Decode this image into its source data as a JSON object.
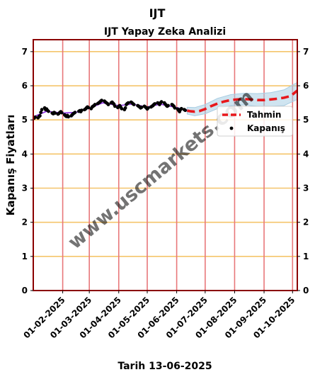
{
  "chart_data": {
    "type": "line",
    "title": "IJT",
    "subtitle": "IJT Yapay Zeka Analizi",
    "xlabel": "Tarih 13-06-2025",
    "ylabel": "Kapanış Fiyatları",
    "watermark": "www.uscmarkets.com",
    "ylim": [
      0,
      7.35
    ],
    "y_ticks": [
      "0",
      "1",
      "2",
      "3",
      "4",
      "5",
      "6",
      "7"
    ],
    "x_range": [
      "2025-01-01",
      "2025-10-06"
    ],
    "x_ticks": [
      {
        "date": "2025-02-01",
        "label": "01-02-2025"
      },
      {
        "date": "2025-03-01",
        "label": "01-03-2025"
      },
      {
        "date": "2025-04-01",
        "label": "01-04-2025"
      },
      {
        "date": "2025-05-01",
        "label": "01-05-2025"
      },
      {
        "date": "2025-06-01",
        "label": "01-06-2025"
      },
      {
        "date": "2025-07-01",
        "label": "01-07-2025"
      },
      {
        "date": "2025-08-01",
        "label": "01-08-2025"
      },
      {
        "date": "2025-09-01",
        "label": "01-09-2025"
      },
      {
        "date": "2025-10-01",
        "label": "01-10-2025"
      }
    ],
    "grid": {
      "horizontal": true,
      "vertical": true
    },
    "legend_position": "right",
    "series": [
      {
        "name": "Kapanış",
        "kind": "scatter",
        "color": "#000000",
        "points": [
          [
            "2025-01-02",
            5.05
          ],
          [
            "2025-01-03",
            5.08
          ],
          [
            "2025-01-06",
            5.06
          ],
          [
            "2025-01-07",
            5.1
          ],
          [
            "2025-01-08",
            5.12
          ],
          [
            "2025-01-09",
            5.22
          ],
          [
            "2025-01-10",
            5.3
          ],
          [
            "2025-01-13",
            5.35
          ],
          [
            "2025-01-14",
            5.3
          ],
          [
            "2025-01-15",
            5.32
          ],
          [
            "2025-01-16",
            5.28
          ],
          [
            "2025-01-17",
            5.25
          ],
          [
            "2025-01-21",
            5.2
          ],
          [
            "2025-01-22",
            5.18
          ],
          [
            "2025-01-23",
            5.22
          ],
          [
            "2025-01-24",
            5.2
          ],
          [
            "2025-01-27",
            5.17
          ],
          [
            "2025-01-28",
            5.19
          ],
          [
            "2025-01-29",
            5.22
          ],
          [
            "2025-01-30",
            5.24
          ],
          [
            "2025-01-31",
            5.21
          ],
          [
            "2025-02-03",
            5.15
          ],
          [
            "2025-02-04",
            5.12
          ],
          [
            "2025-02-05",
            5.1
          ],
          [
            "2025-02-06",
            5.13
          ],
          [
            "2025-02-07",
            5.09
          ],
          [
            "2025-02-10",
            5.12
          ],
          [
            "2025-02-11",
            5.15
          ],
          [
            "2025-02-12",
            5.18
          ],
          [
            "2025-02-13",
            5.2
          ],
          [
            "2025-02-14",
            5.22
          ],
          [
            "2025-02-18",
            5.25
          ],
          [
            "2025-02-19",
            5.27
          ],
          [
            "2025-02-20",
            5.24
          ],
          [
            "2025-02-21",
            5.28
          ],
          [
            "2025-02-24",
            5.3
          ],
          [
            "2025-02-25",
            5.32
          ],
          [
            "2025-02-26",
            5.35
          ],
          [
            "2025-02-27",
            5.38
          ],
          [
            "2025-02-28",
            5.36
          ],
          [
            "2025-03-03",
            5.33
          ],
          [
            "2025-03-04",
            5.38
          ],
          [
            "2025-03-05",
            5.4
          ],
          [
            "2025-03-06",
            5.42
          ],
          [
            "2025-03-07",
            5.45
          ],
          [
            "2025-03-10",
            5.48
          ],
          [
            "2025-03-11",
            5.5
          ],
          [
            "2025-03-12",
            5.52
          ],
          [
            "2025-03-13",
            5.55
          ],
          [
            "2025-03-14",
            5.57
          ],
          [
            "2025-03-17",
            5.55
          ],
          [
            "2025-03-18",
            5.52
          ],
          [
            "2025-03-19",
            5.5
          ],
          [
            "2025-03-20",
            5.48
          ],
          [
            "2025-03-21",
            5.45
          ],
          [
            "2025-03-24",
            5.5
          ],
          [
            "2025-03-25",
            5.52
          ],
          [
            "2025-03-26",
            5.49
          ],
          [
            "2025-03-27",
            5.46
          ],
          [
            "2025-03-28",
            5.4
          ],
          [
            "2025-03-31",
            5.36
          ],
          [
            "2025-04-01",
            5.4
          ],
          [
            "2025-04-02",
            5.42
          ],
          [
            "2025-04-03",
            5.38
          ],
          [
            "2025-04-04",
            5.33
          ],
          [
            "2025-04-07",
            5.3
          ],
          [
            "2025-04-08",
            5.35
          ],
          [
            "2025-04-09",
            5.45
          ],
          [
            "2025-04-10",
            5.48
          ],
          [
            "2025-04-11",
            5.5
          ],
          [
            "2025-04-14",
            5.52
          ],
          [
            "2025-04-15",
            5.5
          ],
          [
            "2025-04-16",
            5.47
          ],
          [
            "2025-04-17",
            5.45
          ],
          [
            "2025-04-21",
            5.42
          ],
          [
            "2025-04-22",
            5.4
          ],
          [
            "2025-04-23",
            5.38
          ],
          [
            "2025-04-24",
            5.35
          ],
          [
            "2025-04-25",
            5.37
          ],
          [
            "2025-04-28",
            5.4
          ],
          [
            "2025-04-29",
            5.38
          ],
          [
            "2025-04-30",
            5.35
          ],
          [
            "2025-05-01",
            5.32
          ],
          [
            "2025-05-02",
            5.35
          ],
          [
            "2025-05-05",
            5.38
          ],
          [
            "2025-05-06",
            5.4
          ],
          [
            "2025-05-07",
            5.42
          ],
          [
            "2025-05-08",
            5.45
          ],
          [
            "2025-05-09",
            5.47
          ],
          [
            "2025-05-12",
            5.5
          ],
          [
            "2025-05-13",
            5.48
          ],
          [
            "2025-05-14",
            5.45
          ],
          [
            "2025-05-15",
            5.5
          ],
          [
            "2025-05-16",
            5.53
          ],
          [
            "2025-05-19",
            5.5
          ],
          [
            "2025-05-20",
            5.46
          ],
          [
            "2025-05-21",
            5.43
          ],
          [
            "2025-05-22",
            5.4
          ],
          [
            "2025-05-23",
            5.42
          ],
          [
            "2025-05-27",
            5.45
          ],
          [
            "2025-05-28",
            5.43
          ],
          [
            "2025-05-29",
            5.4
          ],
          [
            "2025-05-30",
            5.35
          ],
          [
            "2025-06-02",
            5.32
          ],
          [
            "2025-06-03",
            5.28
          ],
          [
            "2025-06-04",
            5.24
          ],
          [
            "2025-06-05",
            5.3
          ],
          [
            "2025-06-06",
            5.33
          ],
          [
            "2025-06-09",
            5.3
          ],
          [
            "2025-06-10",
            5.28
          ]
        ]
      },
      {
        "name": "Tahmin",
        "kind": "line",
        "color": "#e8171b",
        "dashed": true,
        "points": [
          [
            "2025-06-12",
            5.27
          ],
          [
            "2025-06-16",
            5.25
          ],
          [
            "2025-06-20",
            5.24
          ],
          [
            "2025-06-25",
            5.26
          ],
          [
            "2025-07-01",
            5.32
          ],
          [
            "2025-07-07",
            5.4
          ],
          [
            "2025-07-14",
            5.48
          ],
          [
            "2025-07-21",
            5.54
          ],
          [
            "2025-07-28",
            5.58
          ],
          [
            "2025-08-04",
            5.6
          ],
          [
            "2025-08-11",
            5.61
          ],
          [
            "2025-08-18",
            5.6
          ],
          [
            "2025-08-25",
            5.58
          ],
          [
            "2025-09-01",
            5.58
          ],
          [
            "2025-09-08",
            5.6
          ],
          [
            "2025-09-15",
            5.62
          ],
          [
            "2025-09-22",
            5.65
          ],
          [
            "2025-09-29",
            5.7
          ],
          [
            "2025-10-06",
            5.86
          ]
        ]
      }
    ],
    "band": {
      "color": "#a8cde3",
      "upper": [
        [
          "2025-06-12",
          5.37
        ],
        [
          "2025-06-20",
          5.36
        ],
        [
          "2025-07-01",
          5.45
        ],
        [
          "2025-07-14",
          5.63
        ],
        [
          "2025-07-28",
          5.74
        ],
        [
          "2025-08-11",
          5.78
        ],
        [
          "2025-08-25",
          5.77
        ],
        [
          "2025-09-08",
          5.8
        ],
        [
          "2025-09-22",
          5.88
        ],
        [
          "2025-10-06",
          6.1
        ]
      ],
      "lower": [
        [
          "2025-06-12",
          5.17
        ],
        [
          "2025-06-20",
          5.12
        ],
        [
          "2025-07-01",
          5.18
        ],
        [
          "2025-07-14",
          5.33
        ],
        [
          "2025-07-28",
          5.42
        ],
        [
          "2025-08-11",
          5.44
        ],
        [
          "2025-08-25",
          5.4
        ],
        [
          "2025-09-08",
          5.4
        ],
        [
          "2025-09-22",
          5.42
        ],
        [
          "2025-10-06",
          5.6
        ]
      ]
    },
    "trend": {
      "color": "#8a2be2",
      "points": [
        [
          "2025-01-02",
          5.1
        ],
        [
          "2025-01-15",
          5.25
        ],
        [
          "2025-02-01",
          5.2
        ],
        [
          "2025-02-15",
          5.22
        ],
        [
          "2025-03-01",
          5.34
        ],
        [
          "2025-03-15",
          5.5
        ],
        [
          "2025-04-01",
          5.42
        ],
        [
          "2025-04-15",
          5.46
        ],
        [
          "2025-05-01",
          5.38
        ],
        [
          "2025-05-15",
          5.46
        ],
        [
          "2025-06-01",
          5.36
        ],
        [
          "2025-06-12",
          5.28
        ]
      ]
    },
    "colors": {
      "axis_frame": "#8b0000",
      "vertical_grid": "#e8777a",
      "horizontal_grid": "#f5c56b"
    }
  }
}
